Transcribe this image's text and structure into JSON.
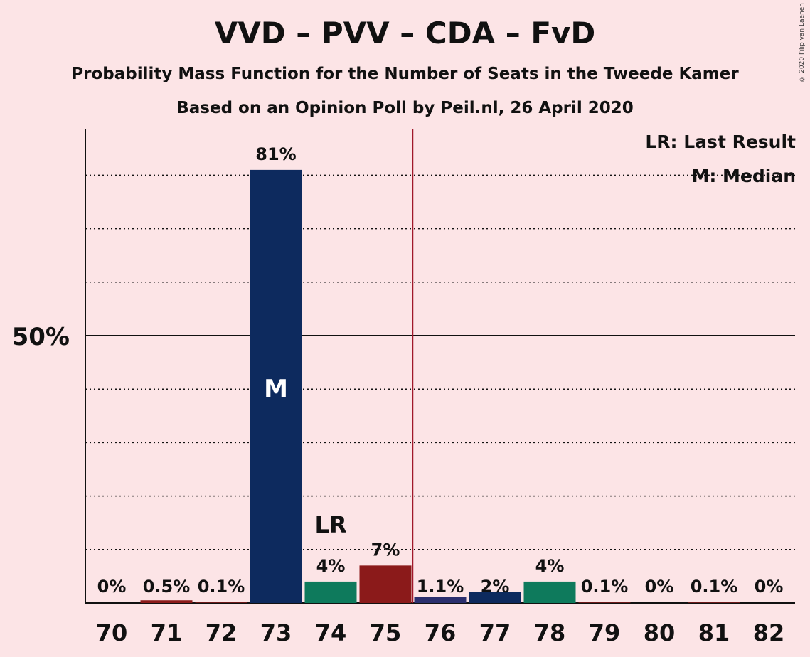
{
  "title": "VVD – PVV – CDA – FvD",
  "subtitle": "Probability Mass Function for the Number of Seats in the Tweede Kamer",
  "subtitle2": "Based on an Opinion Poll by Peil.nl, 26 April 2020",
  "copyright": "© 2020 Filip van Laenen",
  "legend": {
    "lr": "LR: Last Result",
    "median": "M: Median"
  },
  "chart_data": {
    "type": "bar",
    "title": "VVD – PVV – CDA – FvD",
    "categories": [
      "70",
      "71",
      "72",
      "73",
      "74",
      "75",
      "76",
      "77",
      "78",
      "79",
      "80",
      "81",
      "82"
    ],
    "values": [
      0,
      0.5,
      0.1,
      81,
      4,
      7,
      1.1,
      2,
      4,
      0.1,
      0,
      0.1,
      0
    ],
    "value_labels": [
      "0%",
      "0.5%",
      "0.1%",
      "81%",
      "4%",
      "7%",
      "1.1%",
      "2%",
      "4%",
      "0.1%",
      "0%",
      "0.1%",
      "0%"
    ],
    "bar_colors": [
      "#8b1a1a",
      "#8b1a1a",
      "#8b1a1a",
      "#0d2a5e",
      "#0e7a5c",
      "#8b1a1a",
      "#2b2f6e",
      "#0d2a5e",
      "#0e7a5c",
      "#8b1a1a",
      "#8b1a1a",
      "#8b1a1a",
      "#8b1a1a"
    ],
    "ylim": [
      0,
      90
    ],
    "ytick_label": "50%",
    "ytick_value": 50,
    "majority_line_after": "75",
    "median_seat": "73",
    "median_label": "M",
    "last_result_seat": "74",
    "last_result_label": "LR",
    "grid": "dotted",
    "legend_position": "top-right"
  }
}
